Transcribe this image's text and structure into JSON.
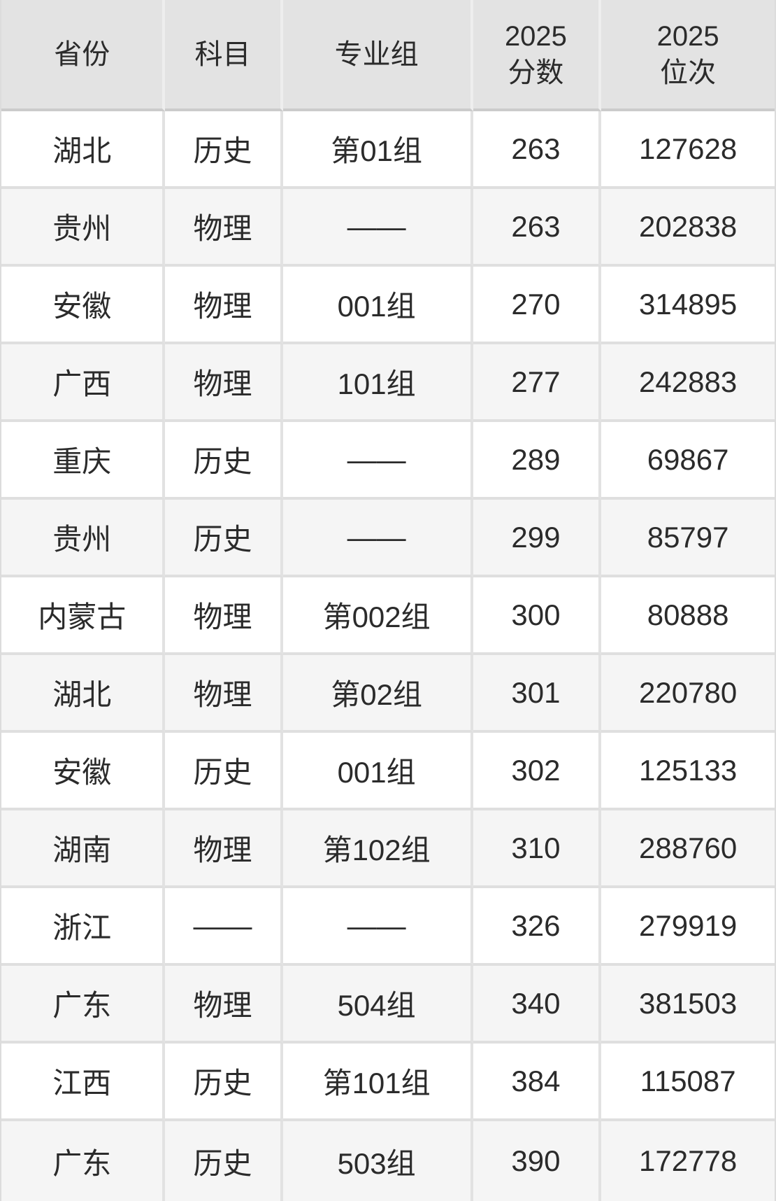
{
  "colors": {
    "header_bg": "#e3e3e3",
    "row_bg": "#ffffff",
    "row_alt_bg": "#f5f5f5",
    "header_divider": "#cbcbcb",
    "row_divider": "#dfdfdf",
    "column_divider": "#e2e2e2",
    "text": "#2b2b2b"
  },
  "chart_data": {
    "type": "table",
    "title": "",
    "columns": [
      {
        "id": "province",
        "label": "省份",
        "lines": [
          "省份"
        ]
      },
      {
        "id": "subject",
        "label": "科目",
        "lines": [
          "科目"
        ]
      },
      {
        "id": "group",
        "label": "专业组",
        "lines": [
          "专业组"
        ]
      },
      {
        "id": "score",
        "label": "2025分数",
        "lines": [
          "2025",
          "分数"
        ]
      },
      {
        "id": "rank",
        "label": "2025位次",
        "lines": [
          "2025",
          "位次"
        ]
      }
    ],
    "rows": [
      {
        "province": "湖北",
        "subject": "历史",
        "group": "第01组",
        "score": "263",
        "rank": "127628"
      },
      {
        "province": "贵州",
        "subject": "物理",
        "group": "——",
        "score": "263",
        "rank": "202838"
      },
      {
        "province": "安徽",
        "subject": "物理",
        "group": "001组",
        "score": "270",
        "rank": "314895"
      },
      {
        "province": "广西",
        "subject": "物理",
        "group": "101组",
        "score": "277",
        "rank": "242883"
      },
      {
        "province": "重庆",
        "subject": "历史",
        "group": "——",
        "score": "289",
        "rank": "69867"
      },
      {
        "province": "贵州",
        "subject": "历史",
        "group": "——",
        "score": "299",
        "rank": "85797"
      },
      {
        "province": "内蒙古",
        "subject": "物理",
        "group": "第002组",
        "score": "300",
        "rank": "80888"
      },
      {
        "province": "湖北",
        "subject": "物理",
        "group": "第02组",
        "score": "301",
        "rank": "220780"
      },
      {
        "province": "安徽",
        "subject": "历史",
        "group": "001组",
        "score": "302",
        "rank": "125133"
      },
      {
        "province": "湖南",
        "subject": "物理",
        "group": "第102组",
        "score": "310",
        "rank": "288760"
      },
      {
        "province": "浙江",
        "subject": "——",
        "group": "——",
        "score": "326",
        "rank": "279919"
      },
      {
        "province": "广东",
        "subject": "物理",
        "group": "504组",
        "score": "340",
        "rank": "381503"
      },
      {
        "province": "江西",
        "subject": "历史",
        "group": "第101组",
        "score": "384",
        "rank": "115087"
      },
      {
        "province": "广东",
        "subject": "历史",
        "group": "503组",
        "score": "390",
        "rank": "172778"
      }
    ]
  }
}
